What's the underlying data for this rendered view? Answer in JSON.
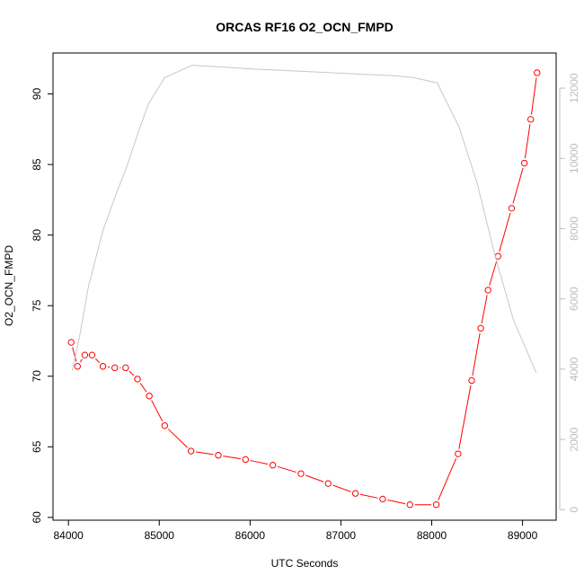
{
  "chart_data": {
    "type": "line",
    "title": "ORCAS RF16 O2_OCN_FMPD",
    "xlabel": "UTC Seconds",
    "ylabel": "O2_OCN_FMPD",
    "xlim": [
      83830,
      89370
    ],
    "ylim": [
      59.8,
      92.9
    ],
    "y2lim": [
      -300,
      13000
    ],
    "x_ticks": [
      84000,
      85000,
      86000,
      87000,
      88000,
      89000
    ],
    "y_ticks": [
      60,
      65,
      70,
      75,
      80,
      85,
      90
    ],
    "y2_ticks": [
      0,
      2000,
      4000,
      6000,
      8000,
      10000,
      12000
    ],
    "grid": false,
    "legend": "none",
    "series": [
      {
        "axis": "left",
        "color": "#ff0000",
        "marker": "open-circle",
        "x": [
          84030,
          84100,
          84180,
          84260,
          84380,
          84510,
          84630,
          84760,
          84890,
          85060,
          85350,
          85650,
          85950,
          86250,
          86560,
          86860,
          87160,
          87460,
          87760,
          88050,
          88290,
          88440,
          88540,
          88620,
          88730,
          88880,
          89020,
          89090,
          89160
        ],
        "values": [
          72.4,
          70.7,
          71.5,
          71.5,
          70.7,
          70.6,
          70.6,
          69.8,
          68.6,
          66.5,
          64.7,
          64.4,
          64.1,
          63.7,
          63.1,
          62.4,
          61.7,
          61.3,
          60.9,
          60.9,
          64.5,
          69.7,
          73.4,
          76.1,
          78.5,
          81.9,
          85.1,
          88.2,
          91.5
        ]
      },
      {
        "axis": "right",
        "color": "#c8c8c8",
        "marker": "none",
        "x": [
          84040,
          84120,
          84220,
          84380,
          84520,
          84640,
          84770,
          84880,
          85060,
          85360,
          85700,
          86000,
          86400,
          86800,
          87200,
          87600,
          87800,
          88060,
          88300,
          88500,
          88700,
          88900,
          89150
        ],
        "values": [
          3950,
          4900,
          6350,
          7950,
          8950,
          9750,
          10750,
          11550,
          12300,
          12650,
          12600,
          12550,
          12500,
          12450,
          12400,
          12350,
          12300,
          12150,
          10900,
          9300,
          7200,
          5400,
          3900
        ]
      }
    ]
  }
}
